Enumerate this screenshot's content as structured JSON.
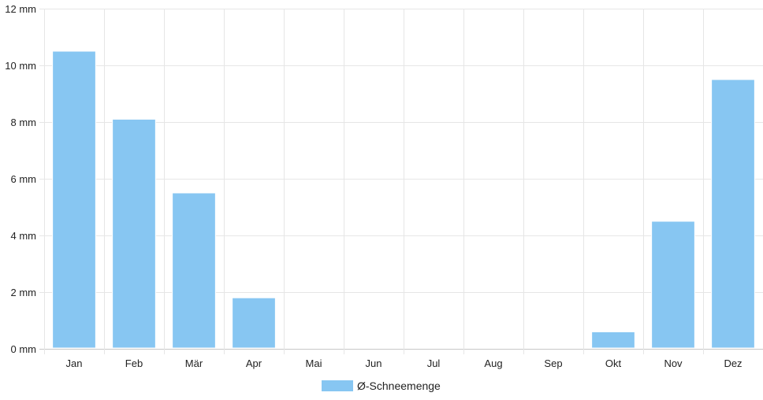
{
  "chart_data": {
    "type": "bar",
    "categories": [
      "Jan",
      "Feb",
      "Mär",
      "Apr",
      "Mai",
      "Jun",
      "Jul",
      "Aug",
      "Sep",
      "Okt",
      "Nov",
      "Dez"
    ],
    "series": [
      {
        "name": "Ø-Schneemenge",
        "values": [
          10.5,
          8.1,
          5.5,
          1.8,
          0,
          0,
          0,
          0,
          0,
          0.6,
          4.5,
          9.5
        ],
        "color": "#87c6f2"
      }
    ],
    "ylim": [
      0,
      12
    ],
    "yticks": [
      0,
      2,
      4,
      6,
      8,
      10,
      12
    ],
    "ytick_labels": [
      "0 mm",
      "2 mm",
      "4 mm",
      "6 mm",
      "8 mm",
      "10 mm",
      "12 mm"
    ],
    "grid": true,
    "legend": "bottom-center"
  }
}
